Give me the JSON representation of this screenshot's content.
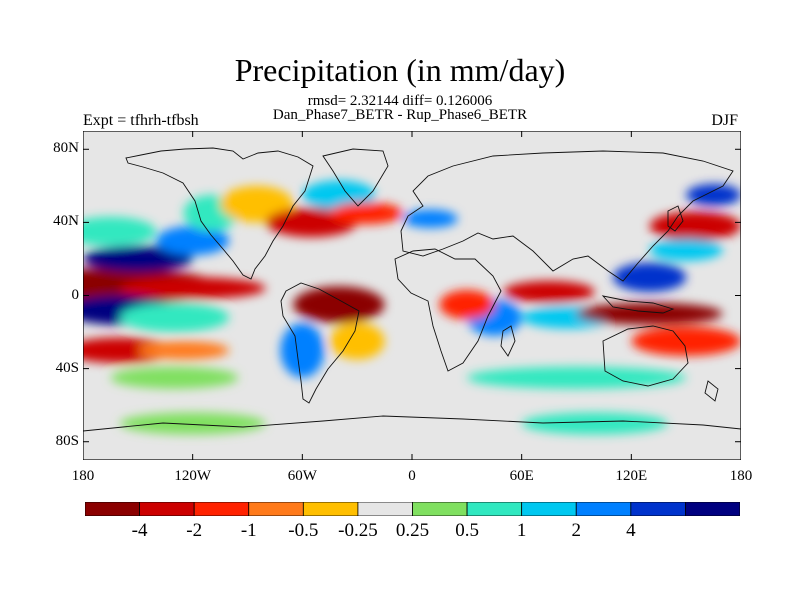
{
  "title": "Precipitation (in mm/day)",
  "stats_line": "rmsd= 2.32144 diff= 0.126006",
  "comparison_line": "Dan_Phase7_BETR - Rup_Phase6_BETR",
  "expt_label": "Expt = tfhrh-tfbsh",
  "season": "DJF",
  "lat_ticks": [
    {
      "lat": 80,
      "label": "80N"
    },
    {
      "lat": 40,
      "label": "40N"
    },
    {
      "lat": 0,
      "label": "0"
    },
    {
      "lat": -40,
      "label": "40S"
    },
    {
      "lat": -80,
      "label": "80S"
    }
  ],
  "lon_ticks": [
    {
      "lon": -180,
      "label": "180"
    },
    {
      "lon": -120,
      "label": "120W"
    },
    {
      "lon": -60,
      "label": "60W"
    },
    {
      "lon": 0,
      "label": "0"
    },
    {
      "lon": 60,
      "label": "60E"
    },
    {
      "lon": 120,
      "label": "120E"
    },
    {
      "lon": 180,
      "label": "180"
    }
  ],
  "colorbar": {
    "colors": [
      "#8b0000",
      "#cc0000",
      "#ff2200",
      "#ff7a1a",
      "#ffbf00",
      "#e6e6e6",
      "#80e060",
      "#30e8c0",
      "#00c8f0",
      "#0080ff",
      "#0033cc",
      "#000080"
    ],
    "labels": [
      "-4",
      "-2",
      "-1",
      "-0.5",
      "-0.25",
      "0.25",
      "0.5",
      "1",
      "2",
      "4"
    ],
    "label_boundaries": [
      1,
      2,
      3,
      4,
      5,
      6,
      7,
      8,
      9,
      10
    ]
  },
  "anomaly_regions": [
    {
      "lon": -165,
      "lat": 5,
      "rlon": 60,
      "rlat": 10,
      "color": "#8b0000"
    },
    {
      "lon": -120,
      "lat": 4,
      "rlon": 40,
      "rlat": 6,
      "color": "#cc0000"
    },
    {
      "lon": -160,
      "lat": -8,
      "rlon": 30,
      "rlat": 8,
      "color": "#000080"
    },
    {
      "lon": -130,
      "lat": -12,
      "rlon": 30,
      "rlat": 8,
      "color": "#30e8c0"
    },
    {
      "lon": -150,
      "lat": 20,
      "rlon": 30,
      "rlat": 7,
      "color": "#000080"
    },
    {
      "lon": -165,
      "lat": 35,
      "rlon": 25,
      "rlat": 8,
      "color": "#30e8c0"
    },
    {
      "lon": -160,
      "lat": -30,
      "rlon": 30,
      "rlat": 7,
      "color": "#cc0000"
    },
    {
      "lon": -125,
      "lat": -30,
      "rlon": 25,
      "rlat": 5,
      "color": "#ff7a1a"
    },
    {
      "lon": -130,
      "lat": -45,
      "rlon": 35,
      "rlat": 6,
      "color": "#80e060"
    },
    {
      "lon": -120,
      "lat": 30,
      "rlon": 20,
      "rlat": 8,
      "color": "#0080ff"
    },
    {
      "lon": -110,
      "lat": 45,
      "rlon": 15,
      "rlat": 10,
      "color": "#30e8c0"
    },
    {
      "lon": -85,
      "lat": 50,
      "rlon": 20,
      "rlat": 10,
      "color": "#ffbf00"
    },
    {
      "lon": -55,
      "lat": 40,
      "rlon": 25,
      "rlat": 8,
      "color": "#cc0000"
    },
    {
      "lon": -40,
      "lat": 55,
      "rlon": 20,
      "rlat": 8,
      "color": "#00c8f0"
    },
    {
      "lon": -25,
      "lat": 45,
      "rlon": 20,
      "rlat": 6,
      "color": "#ff2200"
    },
    {
      "lon": 10,
      "lat": 42,
      "rlon": 15,
      "rlat": 5,
      "color": "#0080ff"
    },
    {
      "lon": -40,
      "lat": -5,
      "rlon": 25,
      "rlat": 10,
      "color": "#8b0000"
    },
    {
      "lon": -60,
      "lat": -30,
      "rlon": 12,
      "rlat": 15,
      "color": "#0080ff"
    },
    {
      "lon": -30,
      "lat": -25,
      "rlon": 15,
      "rlat": 10,
      "color": "#ffbf00"
    },
    {
      "lon": 45,
      "lat": -12,
      "rlon": 15,
      "rlat": 10,
      "color": "#0080ff"
    },
    {
      "lon": 30,
      "lat": -5,
      "rlon": 15,
      "rlat": 8,
      "color": "#ff2200"
    },
    {
      "lon": 75,
      "lat": 2,
      "rlon": 25,
      "rlat": 6,
      "color": "#cc0000"
    },
    {
      "lon": 85,
      "lat": -12,
      "rlon": 25,
      "rlat": 6,
      "color": "#00c8f0"
    },
    {
      "lon": 130,
      "lat": -10,
      "rlon": 40,
      "rlat": 6,
      "color": "#8b0000"
    },
    {
      "lon": 150,
      "lat": -25,
      "rlon": 30,
      "rlat": 8,
      "color": "#ff2200"
    },
    {
      "lon": 130,
      "lat": 10,
      "rlon": 20,
      "rlat": 8,
      "color": "#0033cc"
    },
    {
      "lon": 155,
      "lat": 38,
      "rlon": 25,
      "rlat": 8,
      "color": "#cc0000"
    },
    {
      "lon": 165,
      "lat": 55,
      "rlon": 15,
      "rlat": 6,
      "color": "#0033cc"
    },
    {
      "lon": 150,
      "lat": 25,
      "rlon": 20,
      "rlat": 6,
      "color": "#00c8f0"
    },
    {
      "lon": 90,
      "lat": -45,
      "rlon": 60,
      "rlat": 6,
      "color": "#30e8c0"
    },
    {
      "lon": -120,
      "lat": -70,
      "rlon": 40,
      "rlat": 6,
      "color": "#80e060"
    },
    {
      "lon": 100,
      "lat": -70,
      "rlon": 40,
      "rlat": 6,
      "color": "#30e8c0"
    }
  ]
}
